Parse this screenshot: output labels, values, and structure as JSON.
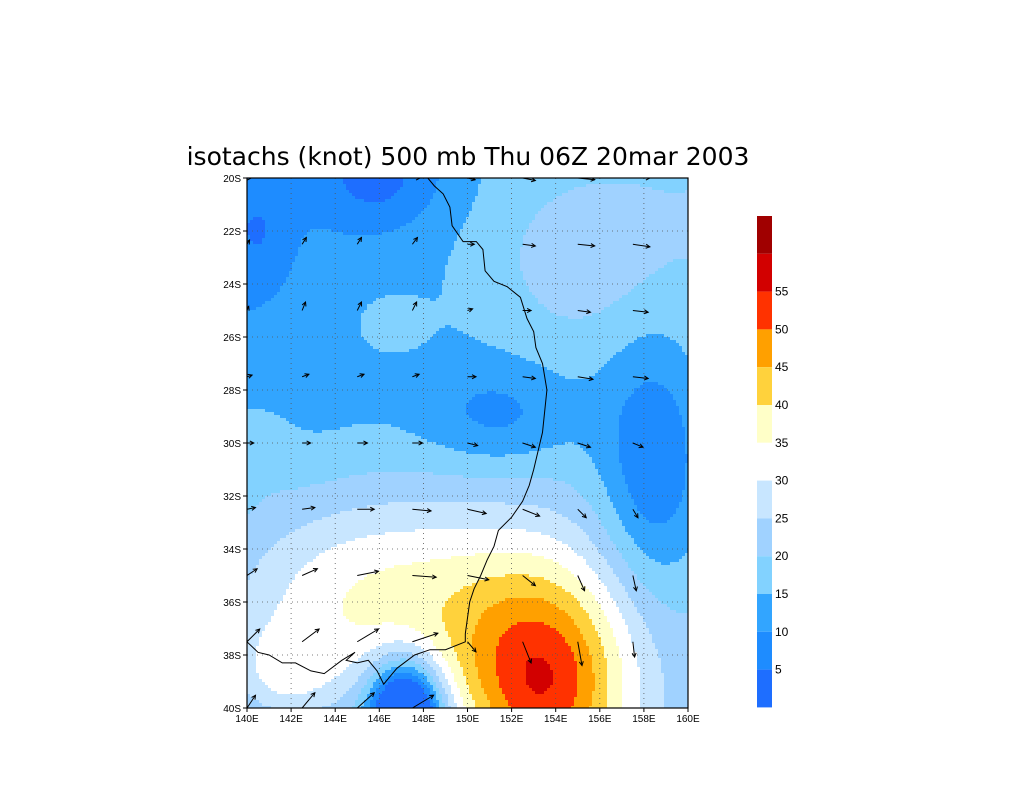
{
  "chart_data": {
    "type": "heatmap",
    "title": "isotachs (knot) 500 mb Thu 06Z 20mar 2003",
    "xlabel": "",
    "ylabel": "",
    "x_ticks": [
      "140E",
      "142E",
      "144E",
      "146E",
      "148E",
      "150E",
      "152E",
      "154E",
      "156E",
      "158E",
      "160E"
    ],
    "y_ticks": [
      "20S",
      "22S",
      "24S",
      "26S",
      "28S",
      "30S",
      "32S",
      "34S",
      "36S",
      "38S",
      "40S"
    ],
    "xlim": [
      140,
      160
    ],
    "ylim": [
      -40,
      -20
    ],
    "grid": true,
    "levels": [
      {
        "lo": 0,
        "hi": 5,
        "color": "#1e6eff"
      },
      {
        "lo": 5,
        "hi": 10,
        "color": "#1e8cff"
      },
      {
        "lo": 10,
        "hi": 15,
        "color": "#32a5ff"
      },
      {
        "lo": 15,
        "hi": 20,
        "color": "#82d2ff"
      },
      {
        "lo": 20,
        "hi": 25,
        "color": "#a0d2ff"
      },
      {
        "lo": 25,
        "hi": 30,
        "color": "#c8e6ff"
      },
      {
        "lo": 30,
        "hi": 35,
        "color": "#ffffff"
      },
      {
        "lo": 35,
        "hi": 40,
        "color": "#ffffc8"
      },
      {
        "lo": 40,
        "hi": 45,
        "color": "#ffd23c"
      },
      {
        "lo": 45,
        "hi": 50,
        "color": "#ffa000"
      },
      {
        "lo": 50,
        "hi": 55,
        "color": "#ff3200"
      },
      {
        "lo": 55,
        "hi": 60,
        "color": "#d20000"
      },
      {
        "lo": 60,
        "hi": 70,
        "color": "#a00000"
      }
    ],
    "colorbar_labels": [
      "5",
      "10",
      "15",
      "20",
      "25",
      "30",
      "35",
      "40",
      "45",
      "50",
      "55"
    ],
    "wind_grid": {
      "lons": [
        140,
        142.5,
        145,
        147.5,
        150,
        152.5,
        155,
        157.5
      ],
      "lats": [
        -20,
        -22.5,
        -25,
        -27.5,
        -30,
        -32.5,
        -35,
        -37.5,
        -40
      ],
      "u": [
        [
          5,
          8,
          8,
          9,
          9,
          15,
          20,
          20
        ],
        [
          3,
          5,
          5,
          6,
          8,
          15,
          20,
          20
        ],
        [
          2,
          4,
          5,
          5,
          6,
          10,
          15,
          18
        ],
        [
          6,
          8,
          8,
          8,
          10,
          15,
          18,
          18
        ],
        [
          8,
          10,
          12,
          12,
          12,
          15,
          15,
          12
        ],
        [
          10,
          15,
          20,
          22,
          22,
          20,
          10,
          6
        ],
        [
          12,
          18,
          25,
          28,
          25,
          15,
          8,
          4
        ],
        [
          15,
          20,
          25,
          30,
          10,
          10,
          5,
          2
        ],
        [
          10,
          15,
          20,
          25,
          5,
          8,
          5,
          0
        ]
      ],
      "v": [
        [
          0,
          5,
          5,
          0,
          -2,
          -3,
          -2,
          0
        ],
        [
          5,
          8,
          8,
          8,
          0,
          -2,
          -2,
          -3
        ],
        [
          5,
          10,
          10,
          10,
          2,
          0,
          -2,
          -2
        ],
        [
          2,
          3,
          3,
          3,
          0,
          -2,
          -3,
          -2
        ],
        [
          0,
          0,
          0,
          0,
          -3,
          -5,
          -5,
          -5
        ],
        [
          2,
          2,
          0,
          -2,
          -5,
          -8,
          -10,
          -10
        ],
        [
          8,
          8,
          5,
          -2,
          -5,
          -12,
          -18,
          -18
        ],
        [
          15,
          15,
          15,
          10,
          -12,
          -25,
          -28,
          -18
        ],
        [
          15,
          18,
          18,
          15,
          -15,
          -22,
          -25,
          -10
        ]
      ]
    },
    "coastline_lonlat": [
      [
        148.2,
        -20.0
      ],
      [
        148.5,
        -20.3
      ],
      [
        148.9,
        -20.6
      ],
      [
        149.2,
        -21.1
      ],
      [
        149.3,
        -21.8
      ],
      [
        149.8,
        -22.4
      ],
      [
        150.4,
        -22.4
      ],
      [
        150.7,
        -22.7
      ],
      [
        150.8,
        -23.5
      ],
      [
        151.2,
        -23.9
      ],
      [
        151.8,
        -24.1
      ],
      [
        152.4,
        -24.5
      ],
      [
        152.7,
        -25.3
      ],
      [
        153.0,
        -25.8
      ],
      [
        153.1,
        -26.4
      ],
      [
        153.4,
        -27.0
      ],
      [
        153.6,
        -28.0
      ],
      [
        153.5,
        -28.8
      ],
      [
        153.4,
        -29.6
      ],
      [
        153.2,
        -30.3
      ],
      [
        153.0,
        -31.0
      ],
      [
        152.8,
        -31.6
      ],
      [
        152.5,
        -32.2
      ],
      [
        152.0,
        -32.8
      ],
      [
        151.4,
        -33.3
      ],
      [
        151.2,
        -33.9
      ],
      [
        150.9,
        -34.4
      ],
      [
        150.6,
        -35.0
      ],
      [
        150.3,
        -35.5
      ],
      [
        150.1,
        -36.0
      ],
      [
        150.0,
        -36.6
      ],
      [
        149.9,
        -37.2
      ],
      [
        149.9,
        -37.5
      ],
      [
        149.0,
        -37.8
      ],
      [
        148.3,
        -37.8
      ],
      [
        147.6,
        -38.0
      ],
      [
        146.8,
        -38.5
      ],
      [
        146.4,
        -38.9
      ],
      [
        146.2,
        -39.1
      ],
      [
        145.9,
        -38.6
      ],
      [
        145.5,
        -38.2
      ],
      [
        145.0,
        -38.3
      ],
      [
        144.5,
        -38.2
      ],
      [
        144.9,
        -37.9
      ],
      [
        144.3,
        -38.2
      ],
      [
        143.5,
        -38.7
      ],
      [
        142.9,
        -38.6
      ],
      [
        142.2,
        -38.3
      ],
      [
        141.6,
        -38.3
      ],
      [
        141.0,
        -38.0
      ],
      [
        140.5,
        -37.9
      ],
      [
        140.0,
        -37.5
      ]
    ]
  }
}
